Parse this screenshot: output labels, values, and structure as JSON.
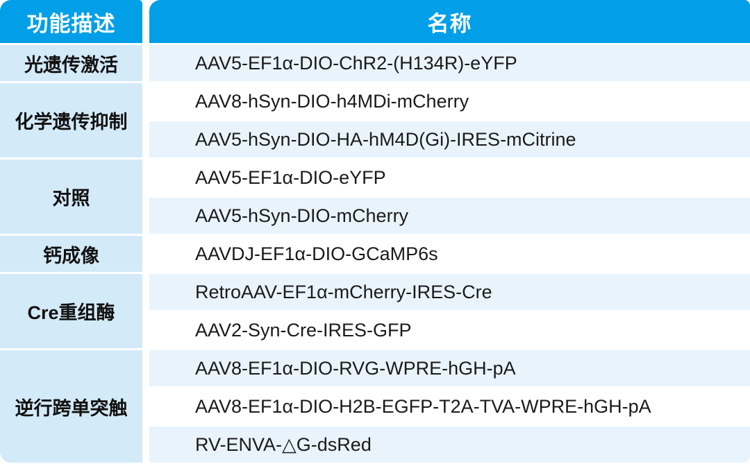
{
  "table": {
    "columns": {
      "function_header": "功能描述",
      "name_header": "名称"
    },
    "groups": [
      {
        "function": "光遗传激活",
        "names": [
          "AAV5-EF1α-DIO-ChR2-(H134R)-eYFP"
        ]
      },
      {
        "function": "化学遗传抑制",
        "names": [
          "AAV8-hSyn-DIO-h4MDi-mCherry",
          "AAV5-hSyn-DIO-HA-hM4D(Gi)-IRES-mCitrine"
        ]
      },
      {
        "function": "对照",
        "names": [
          "AAV5-EF1α-DIO-eYFP",
          "AAV5-hSyn-DIO-mCherry"
        ]
      },
      {
        "function": "钙成像",
        "names": [
          "AAVDJ-EF1α-DIO-GCaMP6s"
        ]
      },
      {
        "function": "Cre重组酶",
        "names": [
          "RetroAAV-EF1α-mCherry-IRES-Cre",
          "AAV2-Syn-Cre-IRES-GFP"
        ]
      },
      {
        "function": "逆行跨单突触",
        "names": [
          "AAV8-EF1α-DIO-RVG-WPRE-hGH-pA",
          "AAV8-EF1α-DIO-H2B-EGFP-T2A-TVA-WPRE-hGH-pA",
          "RV-ENVA-△G-dsRed"
        ]
      }
    ],
    "colors": {
      "header_bg": "#009FE8",
      "header_text": "#FFFFFF",
      "function_cell_bg": "#D3EAF8",
      "row_alt_bg": "#E9F3FC",
      "row_plain_bg": "#FFFFFF",
      "body_text": "#1A1A1A"
    }
  }
}
